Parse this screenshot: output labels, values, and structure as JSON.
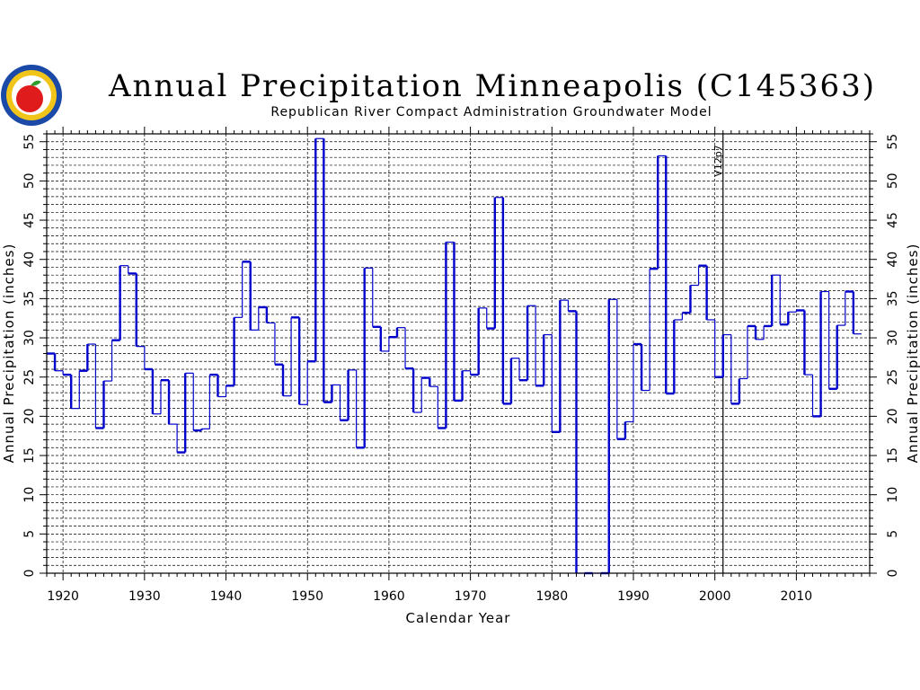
{
  "chart_data": {
    "type": "line",
    "style": "step",
    "title": "Annual Precipitation Minneapolis (C145363)",
    "subtitle": "Republican River Compact Administration Groundwater Model",
    "xlabel": "Calendar Year",
    "ylabel": "Annual Precipitation (inches)",
    "xlim": [
      1918,
      2019
    ],
    "ylim": [
      0,
      56
    ],
    "x_ticks": [
      1920,
      1930,
      1940,
      1950,
      1960,
      1970,
      1980,
      1990,
      2000,
      2010
    ],
    "y_ticks": [
      0,
      5,
      10,
      15,
      20,
      25,
      30,
      35,
      40,
      45,
      50,
      55
    ],
    "grid": true,
    "annotation": {
      "text": "V12p7",
      "x": 2001
    },
    "series_color": "#0000cc",
    "series": [
      {
        "x": [
          1918,
          1919,
          1920,
          1921,
          1922,
          1923,
          1924,
          1925,
          1926,
          1927,
          1928,
          1929,
          1930,
          1931,
          1932,
          1933,
          1934,
          1935,
          1936,
          1937,
          1938,
          1939,
          1940,
          1941,
          1942,
          1943,
          1944,
          1945,
          1946,
          1947,
          1948,
          1949,
          1950,
          1951,
          1952,
          1953,
          1954,
          1955,
          1956,
          1957,
          1958,
          1959,
          1960,
          1961,
          1962,
          1963,
          1964,
          1965,
          1966,
          1967,
          1968,
          1969,
          1970,
          1971,
          1972,
          1973,
          1974,
          1975,
          1976,
          1977,
          1978,
          1979,
          1980,
          1981,
          1982,
          1983,
          1984,
          1985,
          1986,
          1987,
          1988,
          1989,
          1990,
          1991,
          1992,
          1993,
          1994,
          1995,
          1996,
          1997,
          1998,
          1999,
          2000,
          2001,
          2002,
          2003,
          2004,
          2005,
          2006,
          2007,
          2008,
          2009,
          2010,
          2011,
          2012,
          2013,
          2014,
          2015,
          2016,
          2017
        ],
        "y": [
          28,
          25.8,
          25.3,
          21,
          25.8,
          29.2,
          18.5,
          24.5,
          29.7,
          39.2,
          38.2,
          28.9,
          26,
          20.3,
          24.6,
          19,
          15.4,
          25.5,
          18.2,
          18.4,
          25.3,
          22.5,
          23.9,
          32.6,
          39.7,
          31,
          33.9,
          31.9,
          26.6,
          22.6,
          32.6,
          21.5,
          27,
          55.4,
          21.8,
          24,
          19.5,
          25.9,
          16,
          38.9,
          31.4,
          28.3,
          30.1,
          31.3,
          26.1,
          20.5,
          24.9,
          23.8,
          18.5,
          42.2,
          22,
          25.8,
          25.3,
          33.8,
          31.2,
          47.9,
          21.6,
          27.4,
          24.6,
          34.1,
          23.9,
          30.4,
          18,
          34.8,
          33.4,
          0,
          0,
          0,
          0,
          34.9,
          17.1,
          19.3,
          29.2,
          23.3,
          38.8,
          53.2,
          22.9,
          32.3,
          33.2,
          36.7,
          39.2,
          32.3,
          25,
          30.4,
          21.6,
          24.8,
          31.5,
          29.8,
          31.5,
          38,
          31.7,
          33.3,
          33.5,
          25.3,
          20,
          35.9,
          23.5,
          31.6,
          35.9,
          30.5
        ]
      }
    ]
  }
}
